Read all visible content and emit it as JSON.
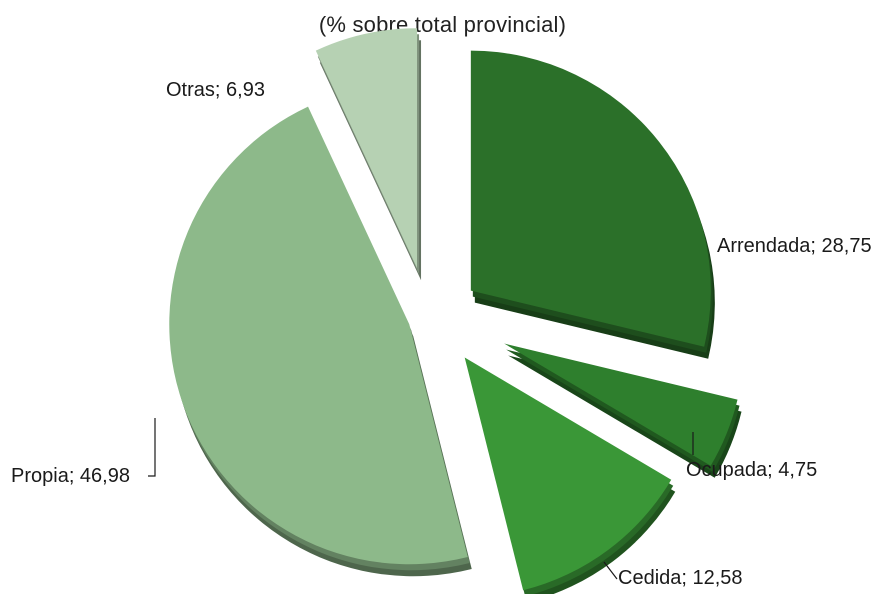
{
  "chart_data": {
    "type": "pie",
    "title": "(% sobre total provincial)",
    "exploded": true,
    "start_angle_deg": 0,
    "direction": "clockwise",
    "slices": [
      {
        "label": "Arrendada",
        "value": 28.75,
        "display": "Arrendada; 28,75",
        "color": "#2b7029"
      },
      {
        "label": "Ocupada",
        "value": 4.75,
        "display": "Ocupada; 4,75",
        "color": "#2e7f2d"
      },
      {
        "label": "Cedida",
        "value": 12.58,
        "display": "Cedida; 12,58",
        "color": "#3a9737"
      },
      {
        "label": "Propia",
        "value": 46.98,
        "display": "Propia; 46,98",
        "color": "#8db98a"
      },
      {
        "label": "Otras",
        "value": 6.93,
        "display": "Otras; 6,93",
        "color": "#b6d1b3"
      }
    ]
  }
}
